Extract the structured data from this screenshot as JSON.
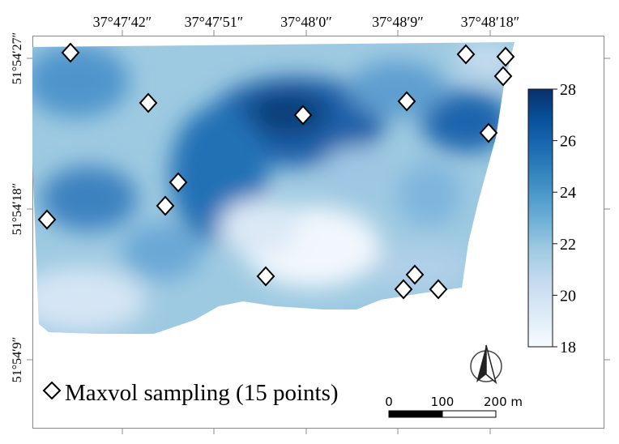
{
  "map": {
    "top_ticks": [
      "37°47′42″",
      "37°47′51″",
      "37°48′0″",
      "37°48′9″",
      "37°48′18″"
    ],
    "left_ticks": [
      "51°54′27″",
      "51°54′18″",
      "51°54′9″"
    ]
  },
  "colorbar": {
    "labels": [
      "28",
      "26",
      "24",
      "22",
      "20",
      "18"
    ],
    "min": 18,
    "max": 28,
    "colors": [
      "#f7fbff",
      "#deebf7",
      "#c6dbef",
      "#9ecae1",
      "#6baed6",
      "#4292c6",
      "#2171b5",
      "#08519c",
      "#08306b"
    ]
  },
  "legend": {
    "marker_icon": "diamond-icon",
    "label": "Maxvol sampling (15 points)"
  },
  "scalebar": {
    "labels": [
      "0",
      "100",
      "200 m"
    ]
  },
  "north_arrow": {
    "icon": "north-arrow-icon"
  },
  "sampling_points_count": 15
}
